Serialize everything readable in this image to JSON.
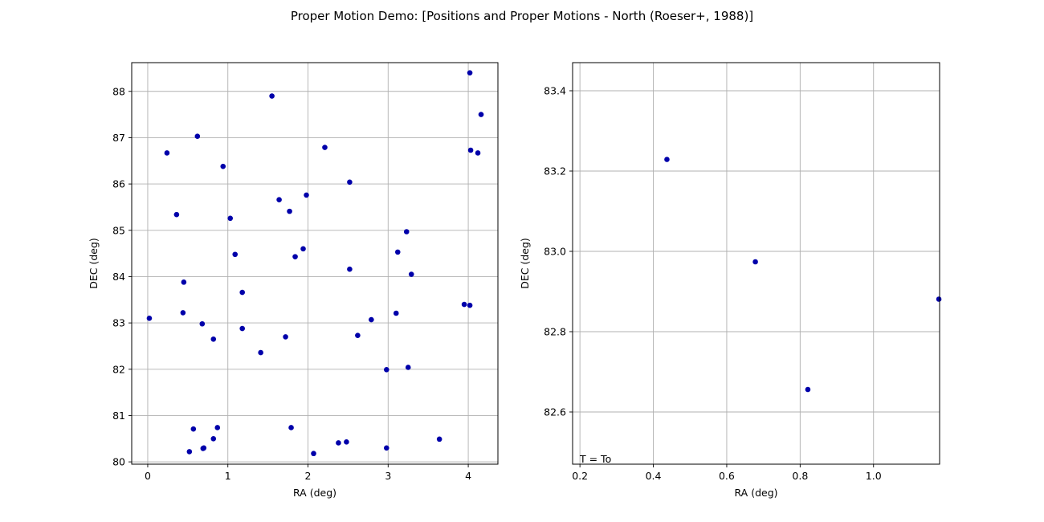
{
  "figure": {
    "title": "Proper Motion Demo: [Positions and Proper Motions - North (Roeser+, 1988)]"
  },
  "colors": {
    "marker": "#0000aa",
    "grid": "#b0b0b0",
    "axes": "#000000"
  },
  "chart_data": [
    {
      "type": "scatter",
      "xlabel": "RA (deg)",
      "ylabel": "DEC (deg)",
      "xlim": [
        -0.2,
        4.37
      ],
      "ylim": [
        79.95,
        88.62
      ],
      "xticks": [
        0,
        1,
        2,
        3,
        4
      ],
      "xtick_labels": [
        "0",
        "1",
        "2",
        "3",
        "4"
      ],
      "yticks": [
        80,
        81,
        82,
        83,
        84,
        85,
        86,
        87,
        88
      ],
      "ytick_labels": [
        "80",
        "81",
        "82",
        "83",
        "84",
        "85",
        "86",
        "87",
        "88"
      ],
      "grid": true,
      "points": [
        [
          0.02,
          83.1
        ],
        [
          0.24,
          86.67
        ],
        [
          0.36,
          85.34
        ],
        [
          0.44,
          83.22
        ],
        [
          0.45,
          83.88
        ],
        [
          0.52,
          80.22
        ],
        [
          0.57,
          80.71
        ],
        [
          0.62,
          87.03
        ],
        [
          0.68,
          82.98
        ],
        [
          0.69,
          80.29
        ],
        [
          0.7,
          80.3
        ],
        [
          0.82,
          82.65
        ],
        [
          0.82,
          80.5
        ],
        [
          0.87,
          80.74
        ],
        [
          0.94,
          86.38
        ],
        [
          1.03,
          85.26
        ],
        [
          1.09,
          84.48
        ],
        [
          1.18,
          83.66
        ],
        [
          1.18,
          82.88
        ],
        [
          1.41,
          82.36
        ],
        [
          1.55,
          87.9
        ],
        [
          1.64,
          85.66
        ],
        [
          1.72,
          82.7
        ],
        [
          1.77,
          85.41
        ],
        [
          1.79,
          80.74
        ],
        [
          1.84,
          84.43
        ],
        [
          1.94,
          84.6
        ],
        [
          1.98,
          85.76
        ],
        [
          2.07,
          80.18
        ],
        [
          2.21,
          86.79
        ],
        [
          2.38,
          80.41
        ],
        [
          2.48,
          80.43
        ],
        [
          2.52,
          86.04
        ],
        [
          2.52,
          84.16
        ],
        [
          2.62,
          82.73
        ],
        [
          2.79,
          83.07
        ],
        [
          2.98,
          81.99
        ],
        [
          2.98,
          80.3
        ],
        [
          3.1,
          83.21
        ],
        [
          3.12,
          84.53
        ],
        [
          3.23,
          84.97
        ],
        [
          3.25,
          82.04
        ],
        [
          3.29,
          84.05
        ],
        [
          3.64,
          80.49
        ],
        [
          3.95,
          83.4
        ],
        [
          4.02,
          83.38
        ],
        [
          4.02,
          88.4
        ],
        [
          4.03,
          86.73
        ],
        [
          4.12,
          86.67
        ],
        [
          4.16,
          87.5
        ]
      ]
    },
    {
      "type": "scatter",
      "xlabel": "RA (deg)",
      "ylabel": "DEC (deg)",
      "xlim": [
        0.18,
        1.18
      ],
      "ylim": [
        82.47,
        83.47
      ],
      "xticks": [
        0.2,
        0.4,
        0.6,
        0.8,
        1.0
      ],
      "xtick_labels": [
        "0.2",
        "0.4",
        "0.6",
        "0.8",
        "1.0"
      ],
      "yticks": [
        82.6,
        82.8,
        83.0,
        83.2,
        83.4
      ],
      "ytick_labels": [
        "82.6",
        "82.8",
        "83.0",
        "83.2",
        "83.4"
      ],
      "grid": true,
      "annotation": "T = To",
      "points": [
        [
          0.437,
          83.229
        ],
        [
          0.678,
          82.974
        ],
        [
          0.821,
          82.656
        ],
        [
          1.178,
          82.881
        ]
      ]
    }
  ]
}
